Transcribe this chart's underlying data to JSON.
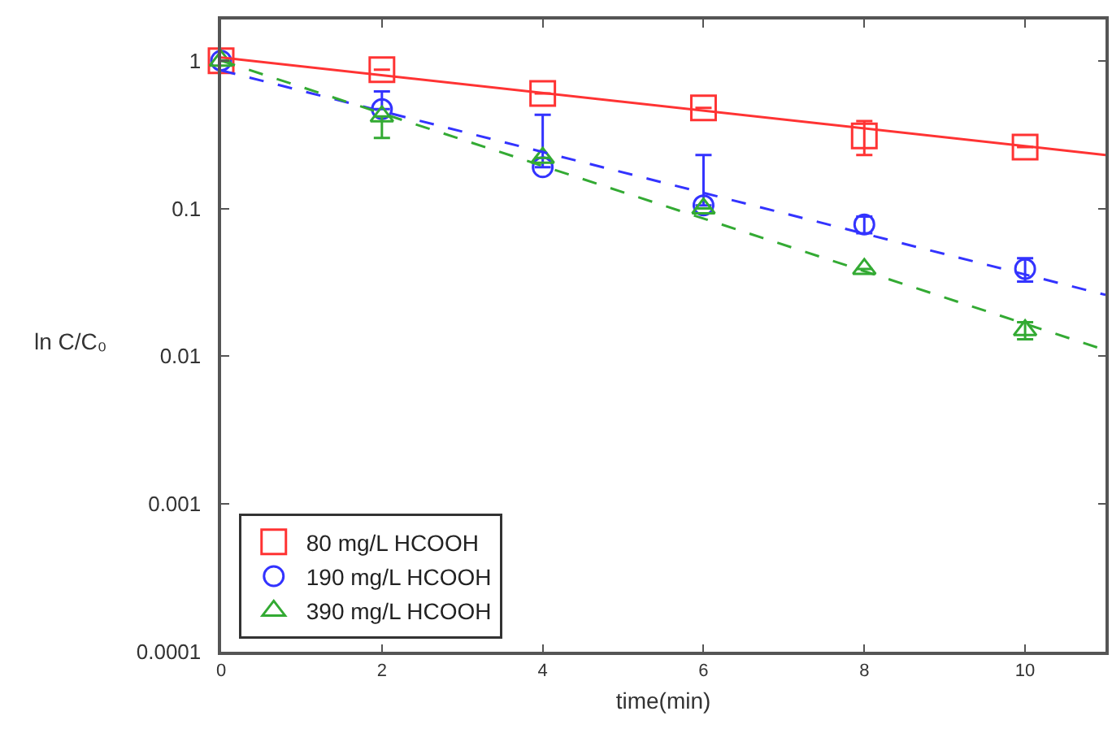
{
  "chart_data": {
    "type": "scatter",
    "xlabel": "time(min)",
    "ylabel": "ln C/C₀",
    "log": "y",
    "grid": false,
    "legend": "bottom left",
    "xlim": [
      0,
      11
    ],
    "xticks": [
      0,
      2,
      4,
      6,
      8,
      10
    ],
    "ylim": [
      0.0001,
      1.9
    ],
    "yticks": [
      0.0001,
      0.001,
      0.01,
      0.1,
      1
    ],
    "series": [
      {
        "name": "80 mg/L HCOOH",
        "color": "#ff3333",
        "marker": "square",
        "x": [
          0,
          2,
          4,
          6,
          8,
          10
        ],
        "values": [
          1.0,
          0.87,
          0.6,
          0.48,
          0.31,
          0.26
        ],
        "errors": [
          null,
          null,
          null,
          null,
          [
            0.23,
            0.39
          ],
          null
        ]
      },
      {
        "name": "190 mg/L HCOOH",
        "color": "#3333ff",
        "marker": "circle",
        "x": [
          0,
          2,
          4,
          6,
          8,
          10
        ],
        "values": [
          1.0,
          0.47,
          0.19,
          0.105,
          0.078,
          0.039
        ],
        "errors": [
          null,
          [
            0.47,
            0.62
          ],
          [
            0.19,
            0.43
          ],
          [
            0.105,
            0.23
          ],
          [
            0.068,
            0.088
          ],
          [
            0.032,
            0.046
          ]
        ]
      },
      {
        "name": "390 mg/L HCOOH",
        "color": "#33aa33",
        "marker": "triangle",
        "x": [
          0,
          2,
          4,
          6,
          8,
          10
        ],
        "values": [
          1.0,
          0.42,
          0.22,
          0.1,
          0.039,
          0.015
        ],
        "errors": [
          null,
          [
            0.3,
            0.42
          ],
          null,
          null,
          null,
          [
            0.013,
            0.017
          ]
        ]
      },
      {
        "type": "line",
        "color": "#ff3333",
        "marker": "none",
        "line_style": "solid",
        "x": [
          0,
          11
        ],
        "values": [
          1.05,
          0.23
        ]
      },
      {
        "type": "line",
        "color": "#3333ff",
        "marker": "none",
        "line_style": "dashed",
        "x": [
          0,
          11
        ],
        "values": [
          0.86,
          0.026
        ]
      },
      {
        "type": "line",
        "color": "#33aa33",
        "marker": "none",
        "line_style": "dashed",
        "x": [
          0,
          11
        ],
        "values": [
          1.0,
          0.011
        ]
      }
    ]
  }
}
